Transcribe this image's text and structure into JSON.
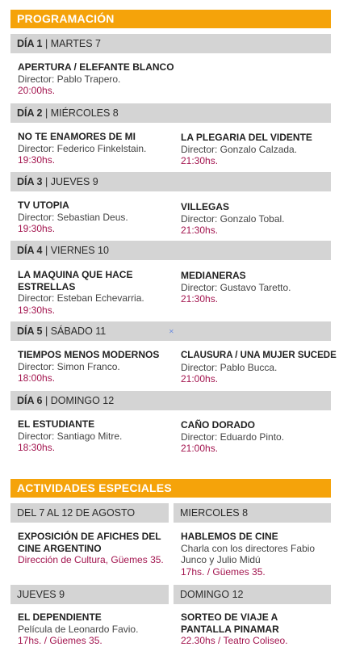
{
  "programacion": {
    "header": "PROGRAMACIÓN",
    "days": [
      {
        "num": "DÍA 1",
        "name": "MARTES 7",
        "films": [
          {
            "title": "APERTURA / ELEFANTE BLANCO",
            "director": "Director: Pablo Trapero.",
            "time": "20:00hs."
          }
        ]
      },
      {
        "num": "DÍA 2",
        "name": "MIÉRCOLES 8",
        "films": [
          {
            "title": "NO TE ENAMORES DE MI",
            "director": "Director: Federico Finkelstain.",
            "time": "19:30hs."
          },
          {
            "title": "LA PLEGARIA DEL VIDENTE",
            "director": "Director: Gonzalo Calzada.",
            "time": "21:30hs."
          }
        ]
      },
      {
        "num": "DÍA 3",
        "name": "JUEVES 9",
        "films": [
          {
            "title": "TV UTOPIA",
            "director": "Director: Sebastian Deus.",
            "time": "19:30hs."
          },
          {
            "title": "VILLEGAS",
            "director": "Director: Gonzalo Tobal.",
            "time": "21:30hs."
          }
        ]
      },
      {
        "num": "DÍA 4",
        "name": "VIERNES 10",
        "films": [
          {
            "title": "LA MAQUINA QUE HACE ESTRELLAS",
            "director": "Director: Esteban Echevarria.",
            "time": "19:30hs."
          },
          {
            "title": "MEDIANERAS",
            "director": "Director: Gustavo Taretto.",
            "time": "21:30hs."
          }
        ]
      },
      {
        "num": "DÍA 5",
        "name": "SÁBADO 11",
        "films": [
          {
            "title": "TIEMPOS MENOS MODERNOS",
            "director": "Director: Simon Franco.",
            "time": "18:00hs."
          },
          {
            "title": "CLAUSURA / UNA MUJER SUCEDE",
            "director": "Director: Pablo Bucca.",
            "time": "21:00hs."
          }
        ]
      },
      {
        "num": "DÍA 6",
        "name": "DOMINGO 12",
        "films": [
          {
            "title": "EL ESTUDIANTE",
            "director": "Director: Santiago Mitre.",
            "time": "18:30hs."
          },
          {
            "title": "CAÑO DORADO",
            "director": "Director: Eduardo Pinto.",
            "time": "21:00hs."
          }
        ]
      }
    ]
  },
  "actividades": {
    "header": "ACTIVIDADES ESPECIALES",
    "blocks": [
      {
        "date": "DEL 7 AL 12 DE AGOSTO",
        "title": "EXPOSICIÓN DE AFICHES DEL CINE ARGENTINO",
        "desc": "",
        "where": "Dirección de Cultura, Güemes 35."
      },
      {
        "date": "MIERCOLES 8",
        "title": "HABLEMOS DE CINE",
        "desc": "Charla con los directores Fabio Junco y Julio Midú",
        "where": "17hs. / Güemes 35."
      },
      {
        "date": "JUEVES 9",
        "title": "EL DEPENDIENTE",
        "desc": "Película de Leonardo Favio.",
        "where": "17hs. / Güemes 35."
      },
      {
        "date": "DOMINGO 12",
        "title": "SORTEO DE VIAJE A PANTALLA PINAMAR",
        "desc": "",
        "where": "22.30hs / Teatro Coliseo."
      }
    ]
  },
  "colors": {
    "accent": "#f5a30a",
    "bar": "#d4d4d4",
    "time": "#a3154f"
  }
}
